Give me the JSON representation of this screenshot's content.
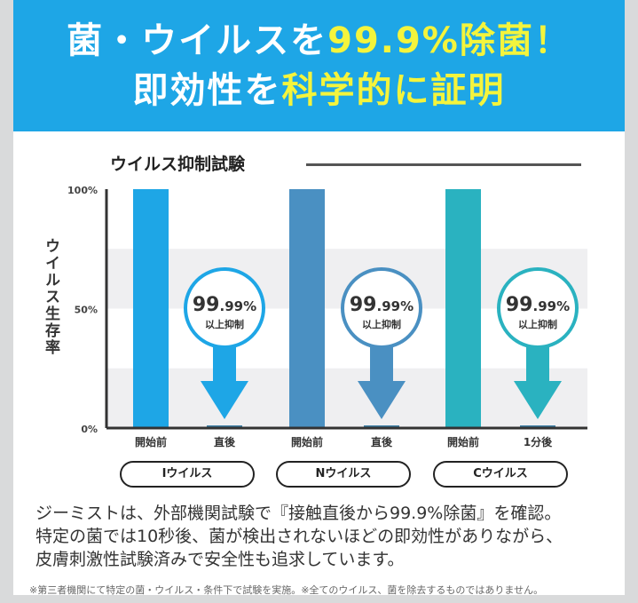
{
  "header": {
    "line1_white": "菌・ウイルスを",
    "line1_yellow": "99.9%除菌！",
    "line2_white": "即効性を",
    "line2_yellow": "科学的に証明"
  },
  "chart_data": {
    "type": "bar",
    "title": "ウイルス抑制試験",
    "ylabel": "ウイルス生存率",
    "ylim": [
      0,
      100
    ],
    "yticks": [
      "100%",
      "50%",
      "0%"
    ],
    "categories": [
      "開始前",
      "直後",
      "開始前",
      "直後",
      "開始前",
      "1分後"
    ],
    "groups": [
      {
        "name": "Iウイルス",
        "color": "#1ea6e6",
        "values": [
          100,
          0.01
        ],
        "badge_main": "99",
        "badge_dec": ".99%",
        "badge_sub": "以上抑制"
      },
      {
        "name": "Nウイルス",
        "color": "#4a90c2",
        "values": [
          100,
          0.01
        ],
        "badge_main": "99",
        "badge_dec": ".99%",
        "badge_sub": "以上抑制"
      },
      {
        "name": "Cウイルス",
        "color": "#2ab2c0",
        "values": [
          100,
          0.01
        ],
        "badge_main": "99",
        "badge_dec": ".99%",
        "badge_sub": "以上抑制"
      }
    ]
  },
  "body": {
    "lines": [
      "ジーミストは、外部機関試験で『接触直後から99.9%除菌』を確認。",
      "特定の菌では10秒後、菌が検出されないほどの即効性がありながら、",
      "皮膚刺激性試験済みで安全性も追求しています。"
    ]
  },
  "footnote": "※第三者機関にて特定の菌・ウイルス・条件下で試験を実施。※全てのウイルス、菌を除去するものではありません。"
}
